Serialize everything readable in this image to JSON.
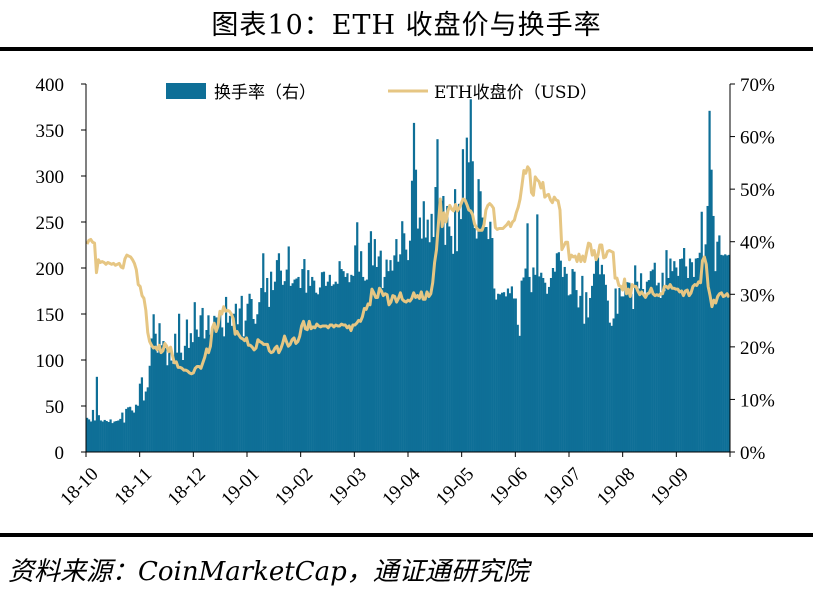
{
  "title": "图表10：ETH 收盘价与换手率",
  "source": "资料来源：CoinMarketCap，通证通研究院",
  "chart_data": {
    "type": "bar+line",
    "x_ticks": [
      "18-10",
      "18-11",
      "18-12",
      "19-01",
      "19-02",
      "19-03",
      "19-04",
      "19-05",
      "19-06",
      "19-07",
      "19-08",
      "19-09"
    ],
    "y_left": {
      "ticks": [
        "0",
        "50",
        "100",
        "150",
        "200",
        "250",
        "300",
        "350",
        "400"
      ],
      "range": [
        0,
        400
      ]
    },
    "y_right": {
      "ticks": [
        "0%",
        "10%",
        "20%",
        "30%",
        "40%",
        "50%",
        "60%",
        "70%"
      ],
      "range": [
        0,
        70
      ]
    },
    "legend_location": "top",
    "series": [
      {
        "name": "换手率（右）",
        "type": "bar",
        "axis": "right",
        "color": "#0e6f97",
        "values": [
          6.5,
          6.2,
          5.8,
          8.0,
          6.0,
          14.3,
          7.0,
          6.0,
          5.8,
          6.1,
          5.9,
          5.7,
          6.2,
          5.5,
          5.8,
          5.9,
          6.0,
          6.3,
          7.5,
          5.6,
          8.2,
          8.5,
          8.6,
          7.9,
          7.5,
          9.0,
          8.8,
          13.0,
          14.2,
          9.8,
          11.5,
          12.3,
          16.4,
          21.6,
          26.2,
          22.5,
          18.9,
          24.5,
          20.3,
          21.1,
          19.8,
          16.5,
          19.5,
          17.4,
          16.8,
          22.5,
          18.9,
          26.3,
          18.9,
          17.5,
          20.2,
          25.2,
          19.8,
          22.6,
          20.9,
          28.5,
          23.3,
          21.9,
          26.0,
          27.4,
          21.6,
          23.2,
          26.0,
          22.3,
          22.8,
          25.9,
          25.6,
          24.4,
          26.5,
          23.7,
          22.0,
          29.5,
          24.6,
          25.9,
          24.0,
          26.3,
          28.2,
          24.3,
          27.3,
          29.7,
          22.0,
          25.0,
          28.2,
          30.1,
          29.1,
          25.3,
          24.4,
          26.2,
          28.5,
          31.2,
          37.8,
          30.4,
          33.1,
          27.6,
          34.3,
          30.8,
          32.4,
          36.5,
          37.8,
          34.5,
          31.8,
          32.5,
          34.7,
          39.1,
          31.6,
          32.1,
          32.8,
          33.0,
          33.3,
          31.2,
          34.8,
          36.7,
          30.3,
          34.6,
          31.6,
          33.3,
          32.6,
          30.3,
          30.0,
          31.3,
          34.2,
          34.3,
          31.6,
          32.4,
          33.7,
          31.6,
          31.9,
          32.4,
          32.0,
          36.3,
          34.8,
          34.4,
          33.3,
          34.0,
          32.3,
          33.7,
          33.5,
          39.3,
          43.7,
          34.3,
          38.2,
          33.3,
          32.6,
          32.8,
          39.8,
          42.0,
          35.5,
          40.5,
          35.2,
          37.2,
          38.3,
          31.2,
          33.3,
          36.6,
          34.4,
          36.5,
          34.5,
          37.4,
          40.5,
          36.2,
          37.6,
          43.9,
          41.6,
          38.5,
          36.5,
          40.2,
          51.6,
          62.6,
          53.7,
          42.5,
          44.6,
          40.6,
          47.7,
          40.8,
          44.2,
          39.9,
          45.3,
          40.9,
          50.4,
          59.5,
          46.3,
          47.8,
          48.7,
          39.4,
          46.8,
          42.9,
          41.1,
          37.7,
          50.0,
          38.2,
          47.2,
          44.3,
          57.6,
          47.7,
          59.8,
          55.1,
          67.1,
          55.3,
          42.6,
          40.6,
          51.9,
          49.6,
          44.6,
          42.8,
          42.8,
          40.5,
          43.8,
          40.7,
          31.1,
          29.0,
          30.1,
          30.0,
          30.3,
          30.4,
          29.6,
          31.1,
          30.2,
          31.5,
          29.2,
          29.2,
          24.2,
          22.1,
          32.6,
          33.2,
          34.9,
          43.5,
          33.3,
          30.4,
          35.1,
          33.7,
          45.2,
          33.4,
          34.1,
          33.1,
          32.2,
          30.1,
          31.4,
          33.1,
          35.0,
          34.3,
          37.8,
          38.0,
          36.4,
          33.3,
          35.2,
          33.9,
          29.8,
          30.0,
          34.8,
          34.3,
          30.8,
          27.5,
          29.7,
          33.5,
          24.4,
          30.4,
          25.6,
          29.3,
          31.6,
          33.9,
          36.4,
          37.0,
          33.8,
          35.6,
          33.8,
          31.8,
          28.8,
          24.6,
          24.0,
          25.4,
          31.1,
          26.3,
          31.2,
          29.6,
          29.6,
          31.5,
          32.3,
          32.2,
          30.1,
          27.2,
          35.5,
          32.4,
          31.1,
          34.0,
          31.0,
          29.9,
          32.4,
          32.7,
          34.4,
          34.7,
          36.0,
          31.7,
          32.2,
          29.3,
          34.1,
          30.6,
          38.4,
          33.1,
          36.8,
          34.4,
          36.3,
          35.1,
          33.5,
          36.7,
          36.8,
          38.8,
          35.3,
          33.1,
          36.8,
          36.1,
          33.3,
          36.8,
          36.9,
          37.9,
          45.7,
          36.8,
          39.5,
          46.8,
          64.9,
          53.7,
          44.9,
          34.4,
          40.0,
          41.2,
          37.5,
          37.4,
          37.6,
          37.4,
          37.5
        ]
      },
      {
        "name": "ETH收盘价（USD）",
        "type": "line",
        "axis": "left",
        "color": "#e6c683",
        "values": [
          226,
          230,
          231,
          228,
          227,
          195,
          209,
          206,
          207,
          206,
          204,
          206,
          205,
          204,
          205,
          203,
          204,
          205,
          201,
          200,
          210,
          214,
          213,
          212,
          209,
          205,
          198,
          182,
          180,
          170,
          167,
          154,
          130,
          120,
          116,
          113,
          114,
          111,
          116,
          108,
          110,
          118,
          115,
          109,
          114,
          105,
          97,
          98,
          92,
          92,
          91,
          89,
          89,
          88,
          86,
          85,
          86,
          91,
          93,
          93,
          91,
          97,
          103,
          112,
          108,
          115,
          135,
          140,
          131,
          137,
          153,
          150,
          158,
          153,
          154,
          153,
          150,
          145,
          128,
          131,
          127,
          124,
          123,
          121,
          124,
          116,
          116,
          114,
          111,
          113,
          122,
          120,
          119,
          117,
          117,
          117,
          110,
          108,
          109,
          113,
          115,
          108,
          112,
          118,
          126,
          120,
          115,
          117,
          122,
          124,
          118,
          120,
          126,
          137,
          142,
          134,
          133,
          142,
          134,
          136,
          135,
          139,
          137,
          136,
          137,
          137,
          137,
          135,
          138,
          138,
          136,
          138,
          137,
          137,
          139,
          138,
          138,
          135,
          137,
          132,
          138,
          138,
          140,
          143,
          142,
          147,
          156,
          155,
          161,
          160,
          177,
          173,
          168,
          168,
          178,
          175,
          170,
          172,
          171,
          160,
          163,
          170,
          169,
          163,
          167,
          173,
          166,
          164,
          163,
          165,
          164,
          167,
          173,
          168,
          170,
          167,
          174,
          166,
          166,
          174,
          169,
          172,
          184,
          206,
          220,
          248,
          275,
          245,
          260,
          250,
          262,
          268,
          264,
          262,
          269,
          262,
          265,
          270,
          275,
          274,
          269,
          263,
          262,
          258,
          248,
          244,
          241,
          241,
          241,
          247,
          263,
          268,
          270,
          268,
          265,
          244,
          242,
          243,
          243,
          243,
          245,
          247,
          250,
          245,
          250,
          252,
          260,
          266,
          275,
          290,
          306,
          303,
          310,
          307,
          282,
          279,
          299,
          296,
          294,
          287,
          293,
          277,
          279,
          280,
          274,
          271,
          277,
          274,
          273,
          263,
          220,
          224,
          228,
          228,
          209,
          214,
          212,
          213,
          207,
          215,
          207,
          213,
          207,
          217,
          227,
          226,
          214,
          219,
          209,
          214,
          225,
          225,
          211,
          212,
          218,
          219,
          218,
          217,
          189,
          189,
          181,
          180,
          176,
          188,
          172,
          177,
          169,
          182,
          180,
          180,
          175,
          171,
          174,
          171,
          168,
          172,
          173,
          178,
          172,
          170,
          171,
          170,
          172,
          172,
          180,
          180,
          178,
          182,
          178,
          178,
          177,
          177,
          174,
          175,
          170,
          175,
          176,
          170,
          173,
          180,
          182,
          181,
          185,
          184,
          208,
          212,
          204,
          180,
          170,
          158,
          165,
          162,
          169,
          172,
          173,
          169,
          170,
          172,
          168
        ]
      }
    ]
  }
}
